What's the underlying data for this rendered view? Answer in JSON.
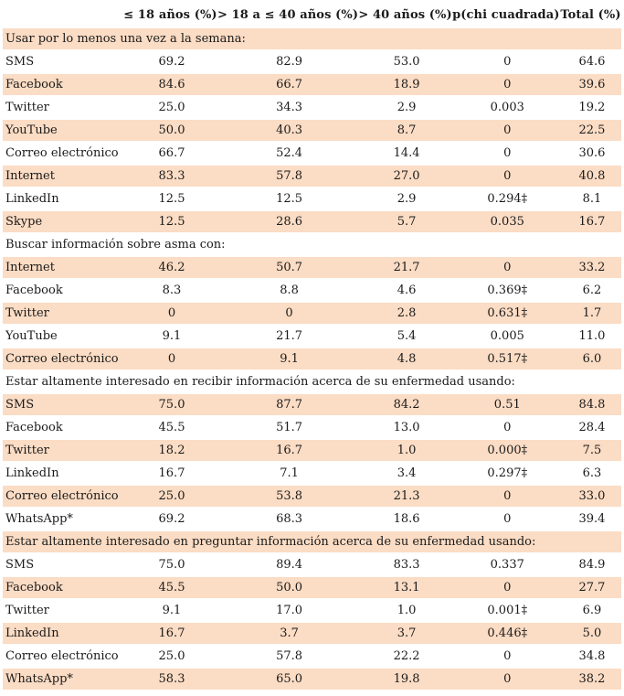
{
  "columns": [
    "",
    "≤ 18 años (%)",
    "> 18 a ≤ 40 años (%)",
    "> 40 años (%)",
    "p(chi cuadrada)",
    "Total (%)"
  ],
  "sections": [
    {
      "title": "Usar por lo menos una vez a la semana:",
      "rows": [
        [
          "SMS",
          "69.2",
          "82.9",
          "53.0",
          "0",
          "64.6"
        ],
        [
          "Facebook",
          "84.6",
          "66.7",
          "18.9",
          "0",
          "39.6"
        ],
        [
          "Twitter",
          "25.0",
          "34.3",
          "2.9",
          "0.003",
          "19.2"
        ],
        [
          "YouTube",
          "50.0",
          "40.3",
          "8.7",
          "0",
          "22.5"
        ],
        [
          "Correo electrónico",
          "66.7",
          "52.4",
          "14.4",
          "0",
          "30.6"
        ],
        [
          "Internet",
          "83.3",
          "57.8",
          "27.0",
          "0",
          "40.8"
        ],
        [
          "LinkedIn",
          "12.5",
          "12.5",
          "2.9",
          "0.294‡",
          "8.1"
        ],
        [
          "Skype",
          "12.5",
          "28.6",
          "5.7",
          "0.035",
          "16.7"
        ]
      ]
    },
    {
      "title": "Buscar información sobre asma con:",
      "rows": [
        [
          "Internet",
          "46.2",
          "50.7",
          "21.7",
          "0",
          "33.2"
        ],
        [
          "Facebook",
          "8.3",
          "8.8",
          "4.6",
          "0.369‡",
          "6.2"
        ],
        [
          "Twitter",
          "0",
          "0",
          "2.8",
          "0.631‡",
          "1.7"
        ],
        [
          "YouTube",
          "9.1",
          "21.7",
          "5.4",
          "0.005",
          "11.0"
        ],
        [
          "Correo electrónico",
          "0",
          "9.1",
          "4.8",
          "0.517‡",
          "6.0"
        ]
      ]
    },
    {
      "title": "Estar altamente interesado en recibir información acerca de su enfermedad usando:",
      "rows": [
        [
          "SMS",
          "75.0",
          "87.7",
          "84.2",
          "0.51",
          "84.8"
        ],
        [
          "Facebook",
          "45.5",
          "51.7",
          "13.0",
          "0",
          "28.4"
        ],
        [
          "Twitter",
          "18.2",
          "16.7",
          "1.0",
          "0.000‡",
          "7.5"
        ],
        [
          "LinkedIn",
          "16.7",
          "7.1",
          "3.4",
          "0.297‡",
          "6.3"
        ],
        [
          "Correo electrónico",
          "25.0",
          "53.8",
          "21.3",
          "0",
          "33.0"
        ],
        [
          "WhatsApp*",
          "69.2",
          "68.3",
          "18.6",
          "0",
          "39.4"
        ]
      ]
    },
    {
      "title": "Estar altamente interesado en preguntar información acerca de su enfermedad usando:",
      "rows": [
        [
          "SMS",
          "75.0",
          "89.4",
          "83.3",
          "0.337",
          "84.9"
        ],
        [
          "Facebook",
          "45.5",
          "50.0",
          "13.1",
          "0",
          "27.7"
        ],
        [
          "Twitter",
          "9.1",
          "17.0",
          "1.0",
          "0.001‡",
          "6.9"
        ],
        [
          "LinkedIn",
          "16.7",
          "3.7",
          "3.7",
          "0.446‡",
          "5.0"
        ],
        [
          "Correo electrónico",
          "25.0",
          "57.8",
          "22.2",
          "0",
          "34.8"
        ],
        [
          "WhatsApp*",
          "58.3",
          "65.0",
          "19.8",
          "0",
          "38.2"
        ]
      ]
    }
  ]
}
